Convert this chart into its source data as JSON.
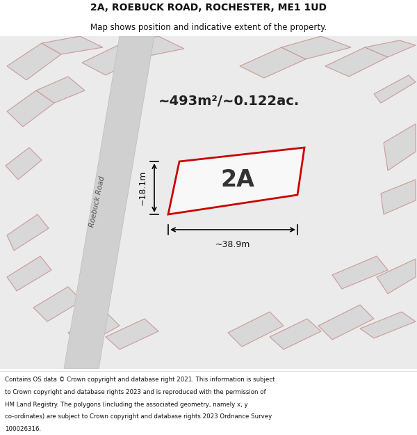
{
  "title_line1": "2A, ROEBUCK ROAD, ROCHESTER, ME1 1UD",
  "title_line2": "Map shows position and indicative extent of the property.",
  "area_text": "~493m²/~0.122ac.",
  "label_text": "2A",
  "dim_width": "~38.9m",
  "dim_height": "~18.1m",
  "map_bg": "#ebebeb",
  "title_bg": "#ffffff",
  "footer_bg": "#ffffff",
  "plot_edge": "#cc0000",
  "other_plot_fill": "#d8d8d8",
  "other_plot_edge": "#cc9999",
  "road_fill": "#d0d0d0",
  "road_label_color": "#555555",
  "footer_lines": [
    "Contains OS data © Crown copyright and database right 2021. This information is subject",
    "to Crown copyright and database rights 2023 and is reproduced with the permission of",
    "HM Land Registry. The polygons (including the associated geometry, namely x, y",
    "co-ordinates) are subject to Crown copyright and database rights 2023 Ordnance Survey",
    "100026316."
  ],
  "figsize": [
    6.0,
    6.25
  ],
  "dpi": 100
}
